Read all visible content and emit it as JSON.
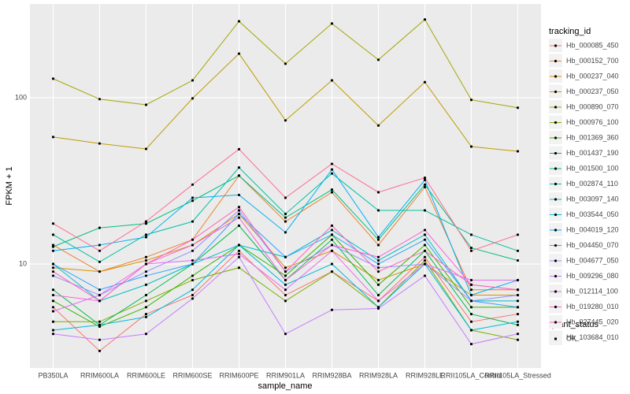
{
  "chart_data": {
    "type": "line",
    "log_y": true,
    "grid": true,
    "x_label": "sample_name",
    "y_label": "FPKM + 1",
    "categories": [
      "PB350LA",
      "RRIM600LA",
      "RRIM600LE",
      "RRIM600SE",
      "RRIM600PE",
      "RRIM901LA",
      "RRIM928BA",
      "RRIM928LA",
      "RRIM928LE",
      "RRII105LA_Control",
      "RRII105LA_Stressed"
    ],
    "ylim": [
      2.37,
      366
    ],
    "yticks": [
      10,
      100
    ],
    "legend_title": "tracking_id",
    "point_color": "#000000",
    "shape_legend": {
      "title": "quant_status",
      "items": [
        "OK"
      ]
    },
    "series": [
      {
        "name": "Hb_000085_450",
        "color": "#F8766D",
        "values": [
          5.5,
          3.0,
          5.0,
          6.5,
          12,
          6.5,
          9,
          6,
          11,
          4.5,
          5
        ]
      },
      {
        "name": "Hb_000152_700",
        "color": "#EA8331",
        "values": [
          13,
          9,
          11,
          14,
          34,
          18,
          27,
          13,
          29,
          7,
          7
        ]
      },
      {
        "name": "Hb_000237_040",
        "color": "#D89000",
        "values": [
          9.5,
          9,
          10.5,
          13,
          20,
          9.5,
          12,
          8,
          10,
          6.5,
          6.5
        ]
      },
      {
        "name": "Hb_000237_050",
        "color": "#C09B00",
        "values": [
          58,
          53,
          49.2,
          99,
          184,
          73,
          127,
          68,
          124,
          50.8,
          47.6
        ]
      },
      {
        "name": "Hb_000890_070",
        "color": "#A3A500",
        "values": [
          130,
          98,
          90.6,
          127,
          288,
          160,
          279,
          169,
          295,
          97,
          87
        ]
      },
      {
        "name": "Hb_000976_100",
        "color": "#7CAE00",
        "values": [
          4.5,
          4.5,
          6,
          8,
          9.5,
          6,
          9,
          5.5,
          10.5,
          4,
          3.5
        ]
      },
      {
        "name": "Hb_001369_360",
        "color": "#39B600",
        "values": [
          6,
          4.2,
          5.5,
          8.5,
          13,
          8.5,
          15,
          7.5,
          13,
          5.5,
          5.5
        ]
      },
      {
        "name": "Hb_001437_190",
        "color": "#00BB4E",
        "values": [
          7,
          4.3,
          6.5,
          10,
          17,
          8,
          14,
          6.5,
          12,
          5,
          4.3
        ]
      },
      {
        "name": "Hb_001500_100",
        "color": "#00BF7D",
        "values": [
          12.7,
          16.5,
          17.5,
          24,
          34,
          19,
          28,
          14,
          30,
          12.5,
          10.5
        ]
      },
      {
        "name": "Hb_002874_110",
        "color": "#00C1A3",
        "values": [
          15,
          10.3,
          15,
          18,
          38,
          20,
          35,
          21,
          21,
          15,
          12
        ]
      },
      {
        "name": "Hb_003097_140",
        "color": "#00BFC4",
        "values": [
          10,
          6,
          7.5,
          10,
          13,
          11,
          16,
          10.5,
          15,
          6,
          6
        ]
      },
      {
        "name": "Hb_003544_050",
        "color": "#00BAE0",
        "values": [
          4,
          4.3,
          4.8,
          7,
          13,
          7.5,
          10,
          5.5,
          10,
          4,
          4.5
        ]
      },
      {
        "name": "Hb_004019_120",
        "color": "#00B0F6",
        "values": [
          12,
          13,
          14.5,
          25,
          26,
          15.5,
          37,
          14.5,
          32,
          6.5,
          8
        ]
      },
      {
        "name": "Hb_004450_070",
        "color": "#35A2FF",
        "values": [
          10,
          7,
          8.5,
          10,
          20,
          11,
          15,
          10,
          14,
          6,
          5.5
        ]
      },
      {
        "name": "Hb_004677_050",
        "color": "#9590FF",
        "values": [
          8.5,
          6.5,
          9,
          12,
          21,
          9,
          13,
          9.5,
          10,
          6,
          6.5
        ]
      },
      {
        "name": "Hb_009296_080",
        "color": "#C77CFF",
        "values": [
          3.8,
          3.5,
          3.8,
          6.2,
          11,
          3.8,
          5.3,
          5.4,
          8.5,
          3.3,
          3.8
        ]
      },
      {
        "name": "Hb_012114_100",
        "color": "#E76BF3",
        "values": [
          5.2,
          6.5,
          10,
          10.5,
          11.5,
          7,
          12,
          6,
          10,
          8,
          8
        ]
      },
      {
        "name": "Hb_019280_010",
        "color": "#FA62DB",
        "values": [
          6.5,
          6,
          10,
          13,
          19,
          8,
          13,
          11,
          16,
          7.5,
          7
        ]
      },
      {
        "name": "Hb_027445_020",
        "color": "#FF62BC",
        "values": [
          9,
          6,
          10,
          14,
          22,
          9,
          17,
          9,
          12,
          7.5,
          7
        ]
      },
      {
        "name": "Hb_103684_010",
        "color": "#FF6C91",
        "values": [
          17.5,
          12,
          18,
          30,
          49,
          25,
          40,
          27,
          33,
          12,
          15
        ]
      }
    ]
  }
}
